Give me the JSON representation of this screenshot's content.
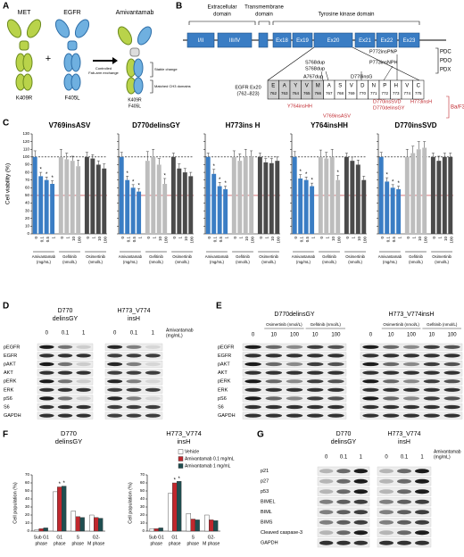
{
  "panels": {
    "A": {
      "label": "A",
      "met": "MET",
      "egfr": "EGFR",
      "plus": "+",
      "product": "Amivantamab",
      "met_mut": "K409R",
      "egfr_mut": "F405L",
      "exchange": [
        "Controlled",
        "Fab-arm exchange"
      ],
      "stable": "Stable change",
      "matched": "Matched CH3 domains",
      "product_mut": [
        "K409R",
        "F405L"
      ]
    },
    "B": {
      "label": "B",
      "domains": [
        [
          "Extracellular",
          "domain"
        ],
        [
          "Transmembrane",
          "domain"
        ],
        [
          "Tyrosine kinase domain"
        ]
      ],
      "exons": [
        "I/II",
        "III/IV",
        "Ex18",
        "Ex19",
        "Ex20",
        "Ex21",
        "Ex22",
        "Ex23"
      ],
      "models": [
        "PDC",
        "PDO",
        "PDX"
      ],
      "insertions": [
        "A767dup",
        "S768dup",
        "S768dup",
        "D770insG",
        "P772insPNP",
        "P773insNPH"
      ],
      "table_title": [
        "EGFR Ex20",
        "(762–823)"
      ],
      "residues": [
        {
          "aa": "E",
          "pos": 762
        },
        {
          "aa": "A",
          "pos": 763
        },
        {
          "aa": "Y",
          "pos": 764
        },
        {
          "aa": "V",
          "pos": 765
        },
        {
          "aa": "M",
          "pos": 766
        },
        {
          "aa": "A",
          "pos": 767
        },
        {
          "aa": "S",
          "pos": 768
        },
        {
          "aa": "V",
          "pos": 769
        },
        {
          "aa": "D",
          "pos": 770
        },
        {
          "aa": "N",
          "pos": 771
        },
        {
          "aa": "P",
          "pos": 772
        },
        {
          "aa": "H",
          "pos": 773
        },
        {
          "aa": "V",
          "pos": 774
        },
        {
          "aa": "C",
          "pos": 775
        }
      ],
      "engineered": [
        "Y764insHH",
        "D770insSVD",
        "D770delinsGY",
        "H773insH",
        "V769insASV"
      ],
      "engineered_model": "Ba/F3"
    },
    "C": {
      "label": "C",
      "type": "bar",
      "y_label": "Cell viability (%)",
      "ylim": [
        0,
        130
      ],
      "yticks": [
        0,
        10,
        20,
        30,
        40,
        50,
        60,
        70,
        80,
        90,
        100,
        110,
        120,
        130
      ],
      "ref_lines": [
        100,
        50
      ],
      "groups": [
        [
          "Amivantamab",
          "(mg/mL)"
        ],
        [
          "Gefitinib",
          "(nmol/L)"
        ],
        [
          "Osimertinib",
          "(nmol/L)"
        ]
      ],
      "colors": [
        "#3a7dc4",
        "#bdbdbd",
        "#4a4a4a"
      ],
      "categories": [
        "0",
        "0.1",
        "0.5",
        "1",
        "0",
        "1",
        "10",
        "100",
        "0",
        "1",
        "10",
        "100"
      ],
      "charts": [
        {
          "title": "V769insASV",
          "values": [
            100,
            75,
            70,
            65,
            100,
            97,
            95,
            88,
            100,
            98,
            90,
            85
          ],
          "errors": [
            8,
            5,
            4,
            4,
            10,
            8,
            6,
            8,
            6,
            5,
            5,
            6
          ],
          "annotations": [
            null,
            "*",
            "*",
            "*",
            null,
            null,
            null,
            null,
            null,
            null,
            null,
            null
          ]
        },
        {
          "title": "D770delinsGY",
          "values": [
            100,
            70,
            60,
            55,
            95,
            100,
            90,
            65,
            100,
            85,
            80,
            75
          ],
          "errors": [
            6,
            5,
            4,
            4,
            12,
            10,
            8,
            7,
            5,
            6,
            5,
            5
          ],
          "annotations": [
            null,
            "*",
            "*",
            "*",
            null,
            null,
            null,
            "*",
            null,
            null,
            null,
            null
          ]
        },
        {
          "title": "H773ins H",
          "values": [
            100,
            78,
            62,
            58,
            100,
            95,
            100,
            100,
            100,
            93,
            92,
            95
          ],
          "errors": [
            5,
            6,
            5,
            4,
            8,
            9,
            10,
            8,
            5,
            5,
            6,
            5
          ],
          "annotations": [
            null,
            "*",
            "*",
            "*",
            null,
            null,
            null,
            null,
            null,
            null,
            null,
            null
          ]
        },
        {
          "title": "Y764insHH",
          "values": [
            100,
            72,
            70,
            62,
            100,
            98,
            100,
            70,
            100,
            95,
            90,
            70
          ],
          "errors": [
            7,
            5,
            4,
            4,
            9,
            8,
            10,
            6,
            5,
            5,
            6,
            5
          ],
          "annotations": [
            null,
            "*",
            "*",
            "*",
            null,
            null,
            null,
            "*",
            null,
            null,
            null,
            null
          ]
        },
        {
          "title": "D770insSVD",
          "values": [
            100,
            68,
            60,
            58,
            100,
            105,
            110,
            112,
            100,
            95,
            100,
            100
          ],
          "errors": [
            6,
            5,
            4,
            4,
            10,
            9,
            10,
            8,
            5,
            6,
            5,
            5
          ],
          "annotations": [
            null,
            "*",
            "*",
            "*",
            null,
            null,
            null,
            null,
            null,
            null,
            null,
            null
          ]
        }
      ]
    },
    "D": {
      "label": "D",
      "cell_lines": [
        [
          "D770",
          "delinsGY"
        ],
        [
          "H773_V774",
          "insH"
        ]
      ],
      "treatment": [
        "Amivantamab",
        "(mg/mL)"
      ],
      "doses": [
        0,
        0.1,
        1
      ],
      "proteins": [
        "pEGFR",
        "EGFR",
        "pAKT",
        "AKT",
        "pERK",
        "ERK",
        "pS6",
        "S6",
        "GAPDH"
      ]
    },
    "E": {
      "label": "E",
      "cell_lines": [
        "D770delinsGY",
        "H773_V774insH"
      ],
      "drugs": [
        "Osimertinib (nmol/L)",
        "Gefitinib (nmol/L)"
      ],
      "doses": [
        0,
        10,
        100,
        10,
        100
      ],
      "proteins": [
        "pEGFR",
        "EGFR",
        "pAKT",
        "AKT",
        "pERK",
        "ERK",
        "pS6",
        "S6",
        "GAPDH"
      ]
    },
    "F": {
      "label": "F",
      "type": "bar",
      "y_label": "Cell population (%)",
      "ylim": [
        0,
        70
      ],
      "yticks": [
        0,
        10,
        20,
        30,
        40,
        50,
        60,
        70
      ],
      "categories": [
        [
          "Sub G1",
          "phase"
        ],
        [
          "G1",
          "phase"
        ],
        [
          "S",
          "phase"
        ],
        [
          "G2-",
          "M phase"
        ]
      ],
      "series": [
        {
          "name": "Vehicle",
          "color": "#ffffff"
        },
        {
          "name": "Amivantamab 0.1 mg/mL",
          "color": "#c0272d"
        },
        {
          "name": "Amivantamab 1 mg/mL",
          "color": "#1f4e50"
        }
      ],
      "charts": [
        {
          "title": [
            "D770",
            "delinsGY"
          ],
          "values": [
            [
              2,
              49,
              25,
              20
            ],
            [
              3,
              55,
              18,
              17
            ],
            [
              4,
              56,
              17,
              16
            ]
          ],
          "annotations": [
            [
              null,
              null,
              null,
              null
            ],
            [
              null,
              "*",
              null,
              null
            ],
            [
              null,
              "*",
              null,
              null
            ]
          ]
        },
        {
          "title": [
            "H773_V774",
            "insH"
          ],
          "values": [
            [
              3,
              47,
              22,
              20
            ],
            [
              3,
              60,
              15,
              14
            ],
            [
              4,
              62,
              14,
              13
            ]
          ],
          "annotations": [
            [
              null,
              null,
              null,
              null
            ],
            [
              null,
              "*",
              null,
              null
            ],
            [
              null,
              "*",
              null,
              null
            ]
          ]
        }
      ]
    },
    "G": {
      "label": "G",
      "cell_lines": [
        [
          "D770",
          "delinsGY"
        ],
        [
          "H773_V774",
          "insH"
        ]
      ],
      "treatment": [
        "Amivantamab",
        "(mg/mL)"
      ],
      "doses": [
        0,
        0.1,
        1
      ],
      "proteins": [
        "p21",
        "p27",
        "p53",
        "BIMEL",
        "BIML",
        "BIMS",
        "Cleaved caspase-3",
        "GAPDH"
      ]
    }
  }
}
